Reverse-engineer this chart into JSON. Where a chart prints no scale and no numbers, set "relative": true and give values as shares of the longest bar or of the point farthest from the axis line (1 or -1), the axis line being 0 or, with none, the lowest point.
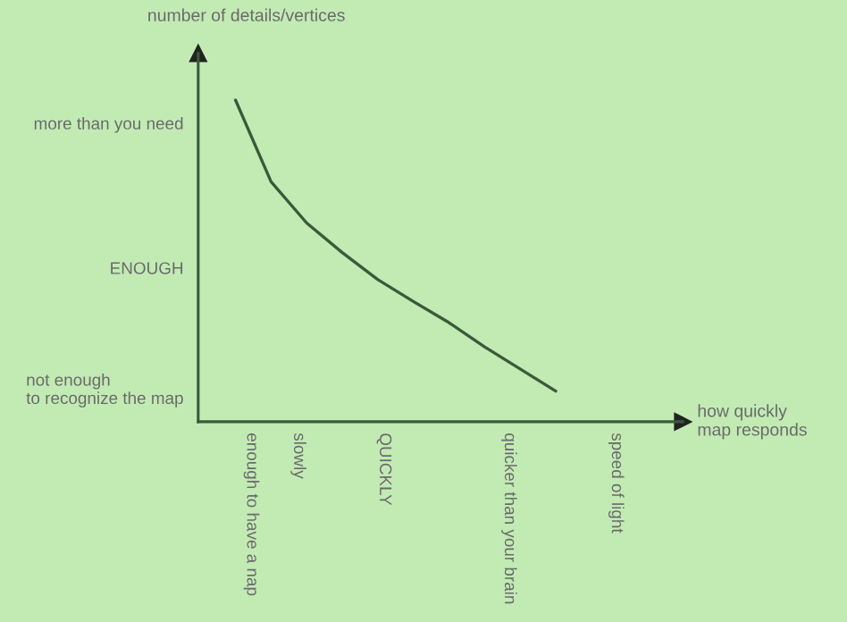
{
  "chart_data": {
    "type": "line",
    "relative": true,
    "categories": [
      null,
      null,
      null,
      null,
      null,
      null,
      null,
      null,
      null,
      null
    ],
    "series": [
      {
        "color": "#3a5a3a",
        "values": [
          1,
          0.746,
          0.618,
          0.526,
          0.442,
          0.374,
          0.308,
          0.233,
          0.164,
          0.095
        ]
      }
    ],
    "annotations": [
      "more than you need",
      "ENOUGH",
      "not enough\nto recognize the map",
      "enough to have a nap",
      "slowly",
      "QUICKLY",
      "quicker than your brain",
      "speed of light",
      "number of details/vertices",
      "how quickly\nmap responds"
    ],
    "grid": false,
    "legend": false,
    "marker": "none",
    "line_style": "solid"
  }
}
